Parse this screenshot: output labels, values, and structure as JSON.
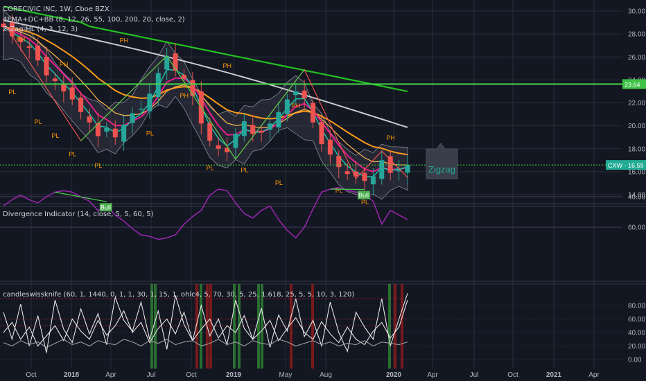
{
  "colors": {
    "background": "#131722",
    "grid": "#2a2e39",
    "axis_text": "#b2b5be",
    "ema_green": "#23c21f",
    "ema_gray": "#c9c9d0",
    "ema_orange": "#ff9a1a",
    "ema_pink": "#e91e8c",
    "ema_teal": "#1ec9b0",
    "bb_fill": "#3b3f4b",
    "candle_up": "#26a69a",
    "candle_down": "#ef5350",
    "level_line": "#46d34a",
    "price_badge": "#22ab94",
    "pivot_label": "#ff9800",
    "divergence_line": "#9c27b0",
    "divergence_bg": "#2a1a40",
    "osc_line": "#e6e6e6"
  },
  "header": {
    "title": "CORECIVIC INC, 1W, Cboe BZX",
    "indicator1": "4EMA+DC+BB (8, 12, 26, 55, 100, 200, 20, close, 2)",
    "indicator2": "Z-Zag-HL (4, 3, 12, 3)"
  },
  "annotation": {
    "zigzag_label": "Zigzag"
  },
  "pivot_labels": {
    "ph": [
      "PH",
      "PH",
      "PH",
      "PH",
      "PH",
      "PH",
      "PH"
    ],
    "pl": [
      "PL",
      "PL",
      "PL",
      "PL",
      "PL",
      "PL",
      "PL",
      "PL",
      "PL",
      "PL",
      "PL"
    ]
  },
  "panel2": {
    "title": "Divergence Indicator (14, close, 5, 5, 60, 5)",
    "bull_labels": [
      "Bull",
      "Bull"
    ]
  },
  "panel3": {
    "title": "candleswissknife (60, 1, 1440, 0, 1, 1, 30, 1, 15, 1, ohlc4, 5, 70, 30, 5, 25, 1.618, 25, 5, 5, 10, 3, 120)"
  },
  "chart_data": [
    {
      "type": "line",
      "title": "CORECIVIC INC, 1W, Cboe BZX",
      "x_labels": [
        "Oct",
        "2018",
        "Apr",
        "Jul",
        "Oct",
        "2019",
        "May",
        "Aug",
        "2020",
        "Apr",
        "Jul",
        "Oct",
        "2021",
        "Apr"
      ],
      "ylim": [
        13.0,
        31.0
      ],
      "y_ticks": [
        "30.00",
        "28.00",
        "26.00",
        "24.00",
        "22.00",
        "20.00",
        "18.00",
        "16.00",
        "14.00"
      ],
      "series": [
        {
          "name": "Close",
          "values": [
            28.6,
            27.8,
            27.3,
            26.8,
            25.7,
            24.4,
            23.9,
            23.0,
            22.3,
            21.2,
            20.3,
            19.1,
            19.8,
            19.0,
            20.1,
            21.1,
            21.5,
            22.8,
            24.6,
            26.1,
            24.8,
            24.1,
            22.6,
            20.2,
            18.7,
            18.0,
            17.7,
            19.3,
            20.4,
            19.3,
            19.4,
            20.2,
            21.2,
            22.3,
            23.0,
            22.4,
            20.3,
            18.4,
            17.5,
            16.4,
            15.8,
            15.6,
            15.2,
            15.6,
            17.0,
            15.9,
            16.3,
            16.59
          ]
        }
      ],
      "levels": [
        {
          "value": 23.64,
          "label": "23.64"
        },
        {
          "value": 16.59,
          "label": "16.59",
          "symbol": "CXW"
        }
      ]
    },
    {
      "type": "line",
      "title": "Divergence Indicator (14, close, 5, 5, 60, 5)",
      "y_ticks": [
        "60.00",
        "40.00"
      ],
      "ylim": [
        25,
        72
      ],
      "series": [
        {
          "name": "RSI",
          "values": [
            46,
            42,
            39,
            42,
            44,
            40,
            37,
            36,
            37,
            40,
            43,
            49,
            46,
            52,
            56,
            61,
            65,
            66,
            68,
            67,
            65,
            58,
            53,
            49,
            39,
            35,
            36,
            44,
            51,
            54,
            49,
            46,
            55,
            62,
            67,
            60,
            48,
            37,
            35,
            34,
            36,
            37,
            38,
            43,
            58,
            49,
            52,
            55
          ]
        }
      ]
    },
    {
      "type": "line",
      "title": "candleswissknife (60, 1, 1440, 0, 1, 1, 30, 1, 15, 1, ohlc4, 5, 70, 30, 5, 25, 1.618, 25, 5, 5, 10, 3, 120)",
      "y_ticks": [
        "80.00",
        "60.00",
        "40.00",
        "20.00",
        "0.00"
      ],
      "ylim": [
        -5,
        105
      ],
      "series": [
        {
          "values": [
            70,
            30,
            82,
            20,
            65,
            10,
            88,
            45,
            25,
            75,
            38,
            68,
            22,
            92,
            58,
            42,
            85,
            30,
            72,
            15,
            95,
            52,
            28,
            80,
            35,
            60,
            22,
            88,
            46,
            30,
            76,
            18,
            66,
            42,
            90,
            34,
            58,
            20,
            85,
            40,
            12,
            70,
            48,
            30,
            90,
            20,
            60,
            98
          ]
        },
        {
          "values": [
            40,
            55,
            30,
            48,
            20,
            35,
            50,
            28,
            60,
            42,
            30,
            58,
            36,
            50,
            72,
            40,
            55,
            25,
            46,
            60,
            38,
            70,
            28,
            45,
            60,
            32,
            50,
            40,
            65,
            30,
            42,
            58,
            28,
            46,
            62,
            40,
            30,
            56,
            38,
            25,
            48,
            30,
            22,
            42,
            55,
            32,
            48,
            88
          ]
        },
        {
          "values": [
            25,
            20,
            28,
            22,
            26,
            18,
            24,
            30,
            22,
            26,
            20,
            28,
            24,
            22,
            30,
            26,
            20,
            28,
            24,
            30,
            22,
            26,
            28,
            20,
            24,
            30,
            22,
            26,
            20,
            28,
            24,
            22,
            30,
            26,
            20,
            24,
            28,
            22,
            26,
            20,
            24,
            22,
            28,
            20,
            26,
            24,
            22,
            26
          ]
        }
      ]
    }
  ]
}
